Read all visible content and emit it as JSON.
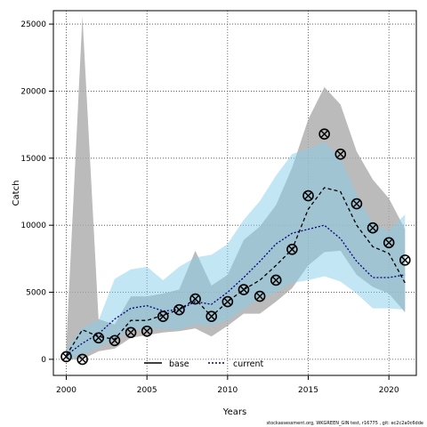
{
  "chart_data": {
    "type": "line",
    "xlabel": "Years",
    "ylabel": "Catch",
    "xlim": [
      1999.2,
      2021.7
    ],
    "ylim": [
      -1200,
      26000
    ],
    "xticks": [
      2000,
      2005,
      2010,
      2015,
      2020
    ],
    "yticks": [
      0,
      5000,
      10000,
      15000,
      20000,
      25000
    ],
    "grid": "dotted",
    "legend_position": "bottom-center",
    "footer": "stockassessment.org, WKGREEN_GIN test, r16775 , git: ec2c2a0c6dde",
    "x": [
      2000,
      2001,
      2002,
      2003,
      2004,
      2005,
      2006,
      2007,
      2008,
      2009,
      2010,
      2011,
      2012,
      2013,
      2014,
      2015,
      2016,
      2017,
      2018,
      2019,
      2020,
      2021
    ],
    "series": [
      {
        "name": "base",
        "color": "#000000",
        "linestyle": "dashed",
        "values": [
          300,
          2200,
          1700,
          1500,
          2900,
          2900,
          3300,
          3700,
          4500,
          3200,
          4300,
          5200,
          5900,
          7000,
          8200,
          11200,
          12800,
          12500,
          10000,
          8400,
          7900,
          5700
        ],
        "band_upper": [
          1000,
          25600,
          3000,
          2600,
          4700,
          4700,
          4900,
          5200,
          8100,
          5500,
          6300,
          8900,
          9900,
          11500,
          14300,
          17900,
          20300,
          19000,
          15500,
          13400,
          12000,
          9700
        ],
        "band_lower": [
          0,
          0,
          600,
          800,
          1600,
          1800,
          2000,
          2100,
          2300,
          1700,
          2500,
          3400,
          3400,
          4300,
          5300,
          7000,
          8000,
          8100,
          6300,
          5400,
          4900,
          3500
        ],
        "band_color": "#aaaaaa"
      },
      {
        "name": "current",
        "color": "#00007f",
        "linestyle": "dotted",
        "values": [
          300,
          1200,
          1900,
          3000,
          3800,
          4000,
          3600,
          3700,
          4300,
          4100,
          5000,
          6100,
          7300,
          8600,
          9400,
          9700,
          10000,
          9000,
          7300,
          6100,
          6100,
          6300
        ],
        "band_upper": [
          700,
          2400,
          2900,
          6000,
          6700,
          6900,
          5900,
          6900,
          7600,
          7800,
          8600,
          10400,
          11800,
          13700,
          15300,
          15700,
          16200,
          15000,
          12300,
          10100,
          9600,
          10800
        ],
        "band_lower": [
          0,
          300,
          900,
          1500,
          2200,
          2300,
          2300,
          2200,
          2600,
          2500,
          2900,
          3800,
          4500,
          5000,
          5700,
          5900,
          6200,
          5800,
          4900,
          3800,
          3800,
          3700
        ],
        "band_color": "#87ceeb"
      }
    ],
    "observed": {
      "x": [
        2000,
        2001,
        2002,
        2003,
        2004,
        2005,
        2006,
        2007,
        2008,
        2009,
        2010,
        2011,
        2012,
        2013,
        2014,
        2015,
        2016,
        2017,
        2018,
        2019,
        2020,
        2021
      ],
      "values": [
        200,
        0,
        1600,
        1400,
        2000,
        2100,
        3200,
        3700,
        4500,
        3200,
        4300,
        5200,
        4700,
        5900,
        8200,
        12200,
        16800,
        15300,
        11600,
        9800,
        8700,
        7400
      ]
    }
  }
}
